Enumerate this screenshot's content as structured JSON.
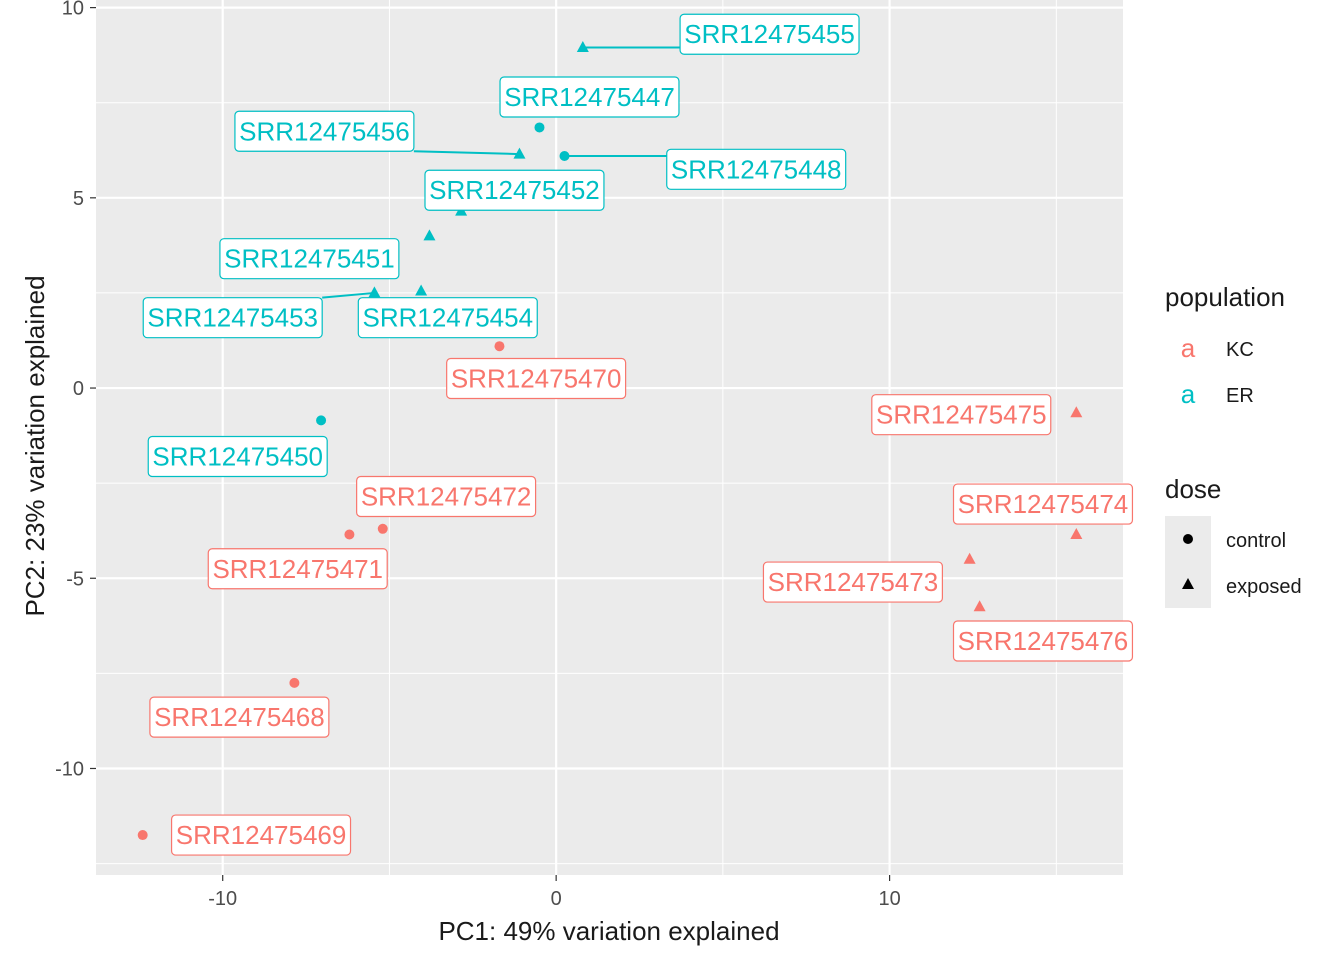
{
  "chart_data": {
    "type": "scatter",
    "xlabel": "PC1: 49% variation explained",
    "ylabel": "PC2: 23% variation explained",
    "xlim": [
      -13.8,
      17.0
    ],
    "ylim": [
      -12.8,
      10.2
    ],
    "x_ticks": [
      -10,
      0,
      10
    ],
    "y_ticks": [
      -10,
      -5,
      0,
      5,
      10
    ],
    "grid": true,
    "legend_position": "right",
    "colors": {
      "KC": "#F8766D",
      "ER": "#00BFC4"
    },
    "legend": {
      "population": {
        "title": "population",
        "entries": [
          {
            "key": "a",
            "label": "KC"
          },
          {
            "key": "a",
            "label": "ER"
          }
        ]
      },
      "dose": {
        "title": "dose",
        "entries": [
          {
            "shape": "circle",
            "label": "control"
          },
          {
            "shape": "triangle",
            "label": "exposed"
          }
        ]
      }
    },
    "points": [
      {
        "label": "SRR12475455",
        "x": 0.8,
        "y": 8.95,
        "population": "ER",
        "dose": "exposed",
        "lx": 6.4,
        "ly": 9.3,
        "leader": true
      },
      {
        "label": "SRR12475447",
        "x": -0.5,
        "y": 6.85,
        "population": "ER",
        "dose": "control",
        "lx": 1.0,
        "ly": 7.65,
        "leader": false
      },
      {
        "label": "SRR12475456",
        "x": -1.1,
        "y": 6.15,
        "population": "ER",
        "dose": "exposed",
        "lx": -6.95,
        "ly": 6.75,
        "leader": true
      },
      {
        "label": "SRR12475448",
        "x": 0.25,
        "y": 6.1,
        "population": "ER",
        "dose": "control",
        "lx": 6.0,
        "ly": 5.75,
        "leader": true
      },
      {
        "label": "SRR12475452",
        "x": -2.85,
        "y": 4.65,
        "population": "ER",
        "dose": "exposed",
        "lx": -1.25,
        "ly": 5.2,
        "leader": false
      },
      {
        "label": "SRR12475451",
        "x": -3.8,
        "y": 4.0,
        "population": "ER",
        "dose": "exposed",
        "lx": -7.4,
        "ly": 3.4,
        "leader": false
      },
      {
        "label": "SRR12475453",
        "x": -5.45,
        "y": 2.5,
        "population": "ER",
        "dose": "exposed",
        "lx": -9.7,
        "ly": 1.85,
        "leader": true
      },
      {
        "label": "SRR12475454",
        "x": -4.05,
        "y": 2.55,
        "population": "ER",
        "dose": "exposed",
        "lx": -3.25,
        "ly": 1.85,
        "leader": false
      },
      {
        "label": "SRR12475470",
        "x": -1.7,
        "y": 1.1,
        "population": "KC",
        "dose": "control",
        "lx": -0.6,
        "ly": 0.25,
        "leader": false
      },
      {
        "label": "SRR12475450",
        "x": -7.05,
        "y": -0.85,
        "population": "ER",
        "dose": "control",
        "lx": -9.55,
        "ly": -1.8,
        "leader": false
      },
      {
        "label": "SRR12475475",
        "x": 15.6,
        "y": -0.65,
        "population": "KC",
        "dose": "exposed",
        "lx": 12.15,
        "ly": -0.7,
        "leader": false
      },
      {
        "label": "SRR12475472",
        "x": -5.2,
        "y": -3.7,
        "population": "KC",
        "dose": "control",
        "lx": -3.3,
        "ly": -2.85,
        "leader": false
      },
      {
        "label": "SRR12475471",
        "x": -6.2,
        "y": -3.85,
        "population": "KC",
        "dose": "control",
        "lx": -7.75,
        "ly": -4.75,
        "leader": false
      },
      {
        "label": "SRR12475474",
        "x": 15.6,
        "y": -3.85,
        "population": "KC",
        "dose": "exposed",
        "lx": 14.6,
        "ly": -3.05,
        "leader": false
      },
      {
        "label": "SRR12475473",
        "x": 12.4,
        "y": -4.5,
        "population": "KC",
        "dose": "exposed",
        "lx": 8.9,
        "ly": -5.1,
        "leader": false
      },
      {
        "label": "SRR12475476",
        "x": 12.7,
        "y": -5.75,
        "population": "KC",
        "dose": "exposed",
        "lx": 14.6,
        "ly": -6.65,
        "leader": false
      },
      {
        "label": "SRR12475468",
        "x": -7.85,
        "y": -7.75,
        "population": "KC",
        "dose": "control",
        "lx": -9.5,
        "ly": -8.65,
        "leader": false
      },
      {
        "label": "SRR12475469",
        "x": -12.4,
        "y": -11.75,
        "population": "KC",
        "dose": "control",
        "lx": -8.85,
        "ly": -11.75,
        "leader": false
      }
    ]
  }
}
